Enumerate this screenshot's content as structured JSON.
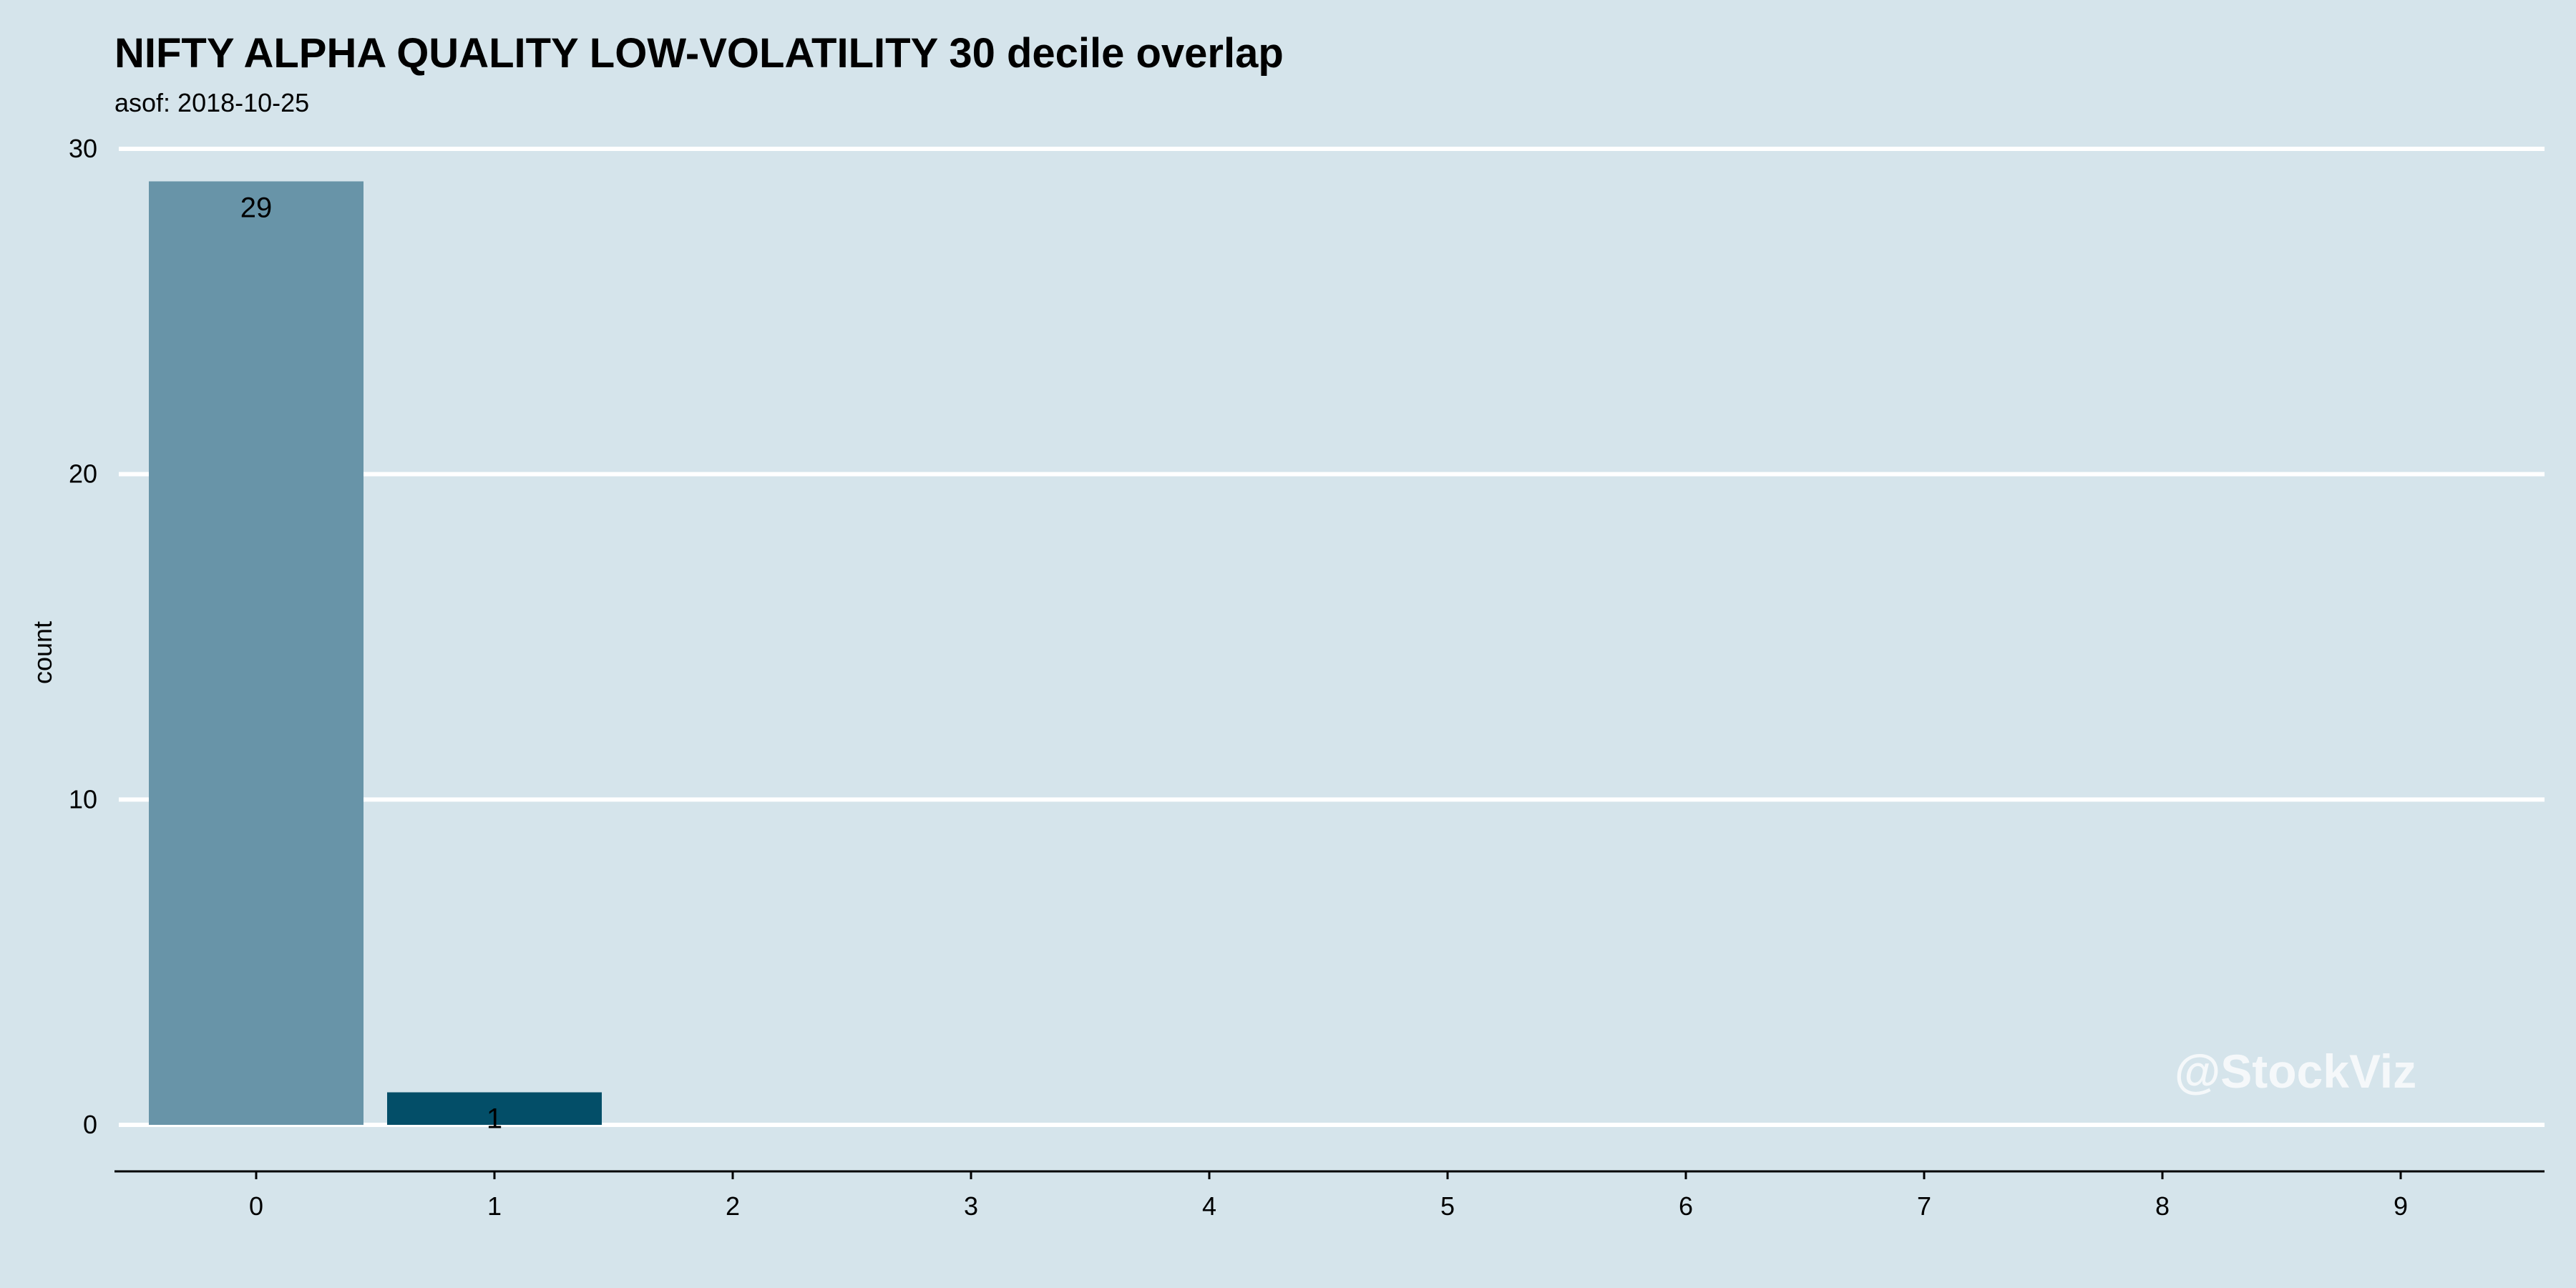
{
  "chart_data": {
    "type": "bar",
    "title": "NIFTY ALPHA QUALITY LOW-VOLATILITY 30 decile overlap",
    "subtitle": "asof: 2018-10-25",
    "xlabel": "",
    "ylabel": "count",
    "categories": [
      "0",
      "1",
      "2",
      "3",
      "4",
      "5",
      "6",
      "7",
      "8",
      "9"
    ],
    "values": [
      29,
      1,
      0,
      0,
      0,
      0,
      0,
      0,
      0,
      0
    ],
    "data_labels": [
      "29",
      "1",
      "",
      "",
      "",
      "",
      "",
      "",
      "",
      ""
    ],
    "ylim": [
      0,
      30
    ],
    "yticks": [
      0,
      10,
      20,
      30
    ],
    "bar_colors": [
      "#6894a8",
      "#034e68",
      "#6894a8",
      "#6894a8",
      "#6894a8",
      "#6894a8",
      "#6894a8",
      "#6894a8",
      "#6894a8",
      "#6894a8"
    ],
    "gridlines": true,
    "grid_color": "#ffffff",
    "background": "#d5e4eb",
    "watermark": "@StockViz"
  }
}
